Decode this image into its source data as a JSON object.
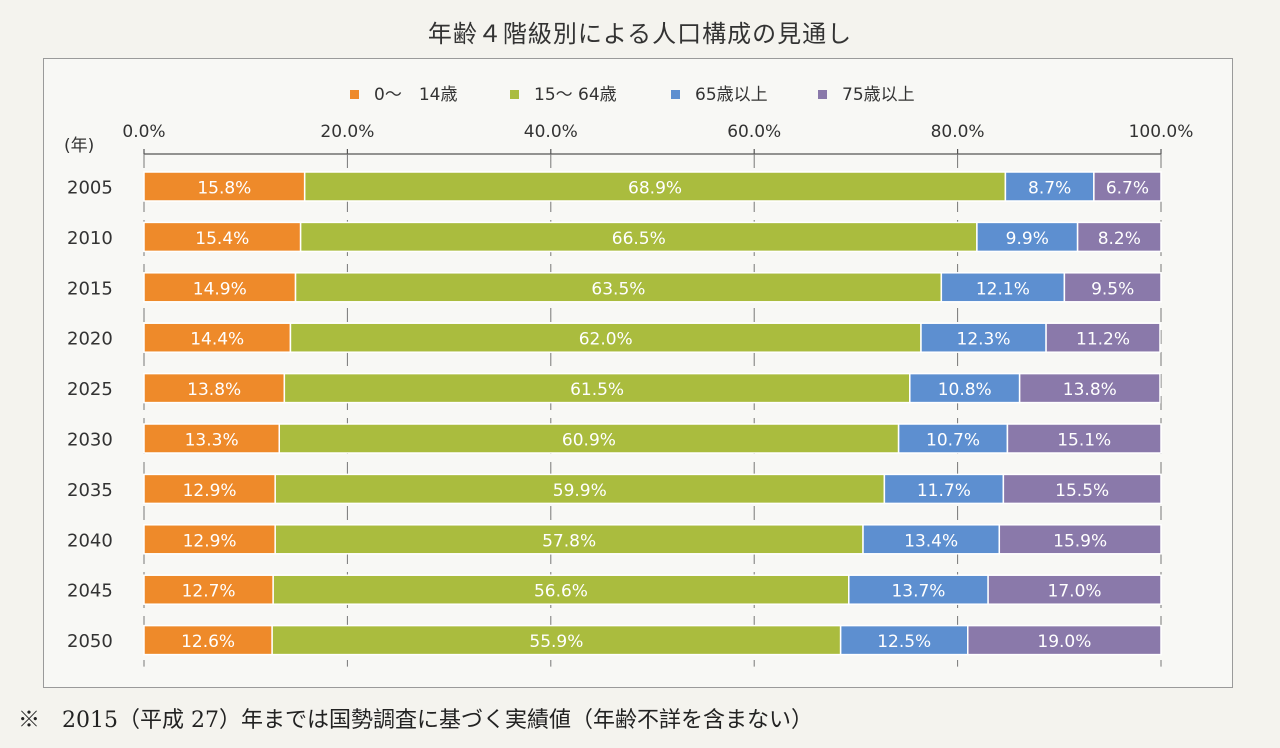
{
  "chart_data": {
    "type": "bar",
    "orientation": "horizontal",
    "stacked": true,
    "title": "年齢４階級別による人口構成の見通し",
    "ylabel": "(年)",
    "xlabel": "",
    "xlim": [
      0,
      100
    ],
    "x_ticks": [
      "0.0%",
      "20.0%",
      "40.0%",
      "60.0%",
      "80.0%",
      "100.0%"
    ],
    "x_tick_values": [
      0,
      20,
      40,
      60,
      80,
      100
    ],
    "legend_position": "top",
    "categories": [
      "2005",
      "2010",
      "2015",
      "2020",
      "2025",
      "2030",
      "2035",
      "2040",
      "2045",
      "2050"
    ],
    "series": [
      {
        "name": "0～　14歳",
        "color": "#ee8a2a",
        "values": [
          15.8,
          15.4,
          14.9,
          14.4,
          13.8,
          13.3,
          12.9,
          12.9,
          12.7,
          12.6
        ]
      },
      {
        "name": "15～ 64歳",
        "color": "#aabc3e",
        "values": [
          68.9,
          66.5,
          63.5,
          62.0,
          61.5,
          60.9,
          59.9,
          57.8,
          56.6,
          55.9
        ]
      },
      {
        "name": "65歳以上",
        "color": "#5d8fd0",
        "values": [
          8.7,
          9.9,
          12.1,
          12.3,
          10.8,
          10.7,
          11.7,
          13.4,
          13.7,
          12.5
        ]
      },
      {
        "name": "75歳以上",
        "color": "#8a79aa",
        "values": [
          6.7,
          8.2,
          9.5,
          11.2,
          13.8,
          15.1,
          15.5,
          15.9,
          17.0,
          19.0
        ]
      }
    ],
    "grid": true
  },
  "footnote": "※　2015（平成 27）年までは国勢調査に基づく実績値（年齢不詳を含まない）"
}
